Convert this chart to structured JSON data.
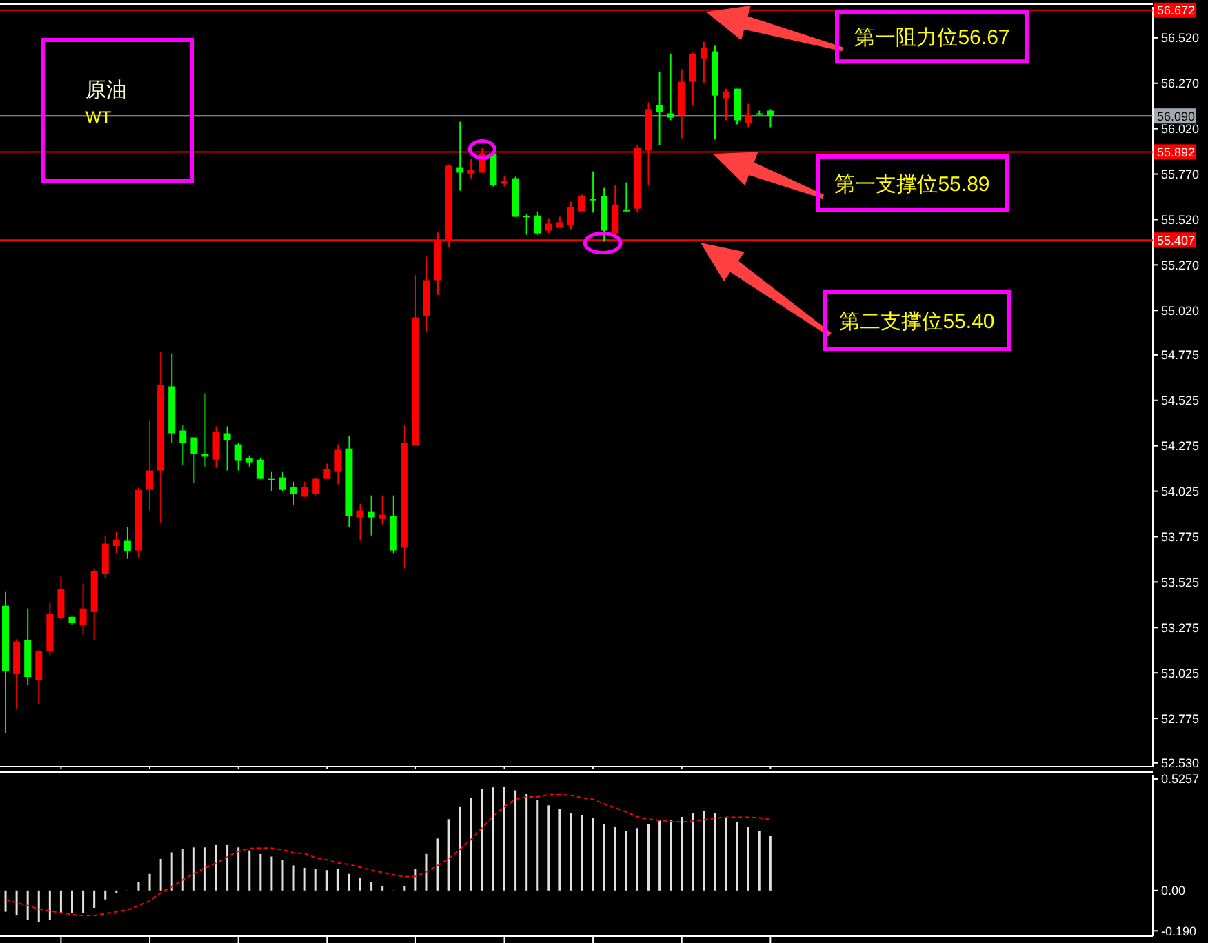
{
  "chart_data": [
    {
      "type": "candlestick",
      "categories": [
        null,
        null,
        null,
        null,
        null,
        null,
        null,
        null,
        null,
        null,
        null,
        null,
        null,
        null,
        null,
        null,
        null,
        null,
        null,
        null,
        null,
        null,
        null,
        null,
        null,
        null,
        null,
        null,
        null,
        null,
        null,
        null,
        null,
        null,
        null,
        null,
        null,
        null,
        null,
        null,
        null,
        null,
        null,
        null,
        null,
        null,
        null,
        null,
        null,
        null,
        null,
        null,
        null,
        null,
        null,
        null,
        null,
        null,
        null,
        null,
        null,
        null,
        null,
        null,
        null,
        null,
        null,
        null,
        null,
        null,
        null,
        null,
        null,
        null,
        null,
        null,
        null,
        null,
        null,
        null,
        null,
        null,
        null,
        null,
        null,
        null,
        null,
        null,
        null,
        null,
        null,
        null,
        null,
        null,
        null,
        null,
        null,
        null,
        null,
        null,
        null,
        null,
        null,
        null
      ],
      "ohlc": [
        [
          53.395,
          53.471,
          52.692,
          53.034
        ],
        [
          53.018,
          53.211,
          52.826,
          53.198
        ],
        [
          53.206,
          53.38,
          52.958,
          53.003
        ],
        [
          52.988,
          53.15,
          52.851,
          53.145
        ],
        [
          53.147,
          53.41,
          53.125,
          53.35
        ],
        [
          53.329,
          53.555,
          53.32,
          53.486
        ],
        [
          53.334,
          53.334,
          53.291,
          53.299
        ],
        [
          53.291,
          53.517,
          53.236,
          53.38
        ],
        [
          53.36,
          53.6,
          53.206,
          53.585
        ],
        [
          53.572,
          53.782,
          53.547,
          53.737
        ],
        [
          53.724,
          53.8,
          53.684,
          53.759
        ],
        [
          53.752,
          53.828,
          53.653,
          53.694
        ],
        [
          53.699,
          54.045,
          53.661,
          54.032
        ],
        [
          54.032,
          54.412,
          53.919,
          54.139
        ],
        [
          54.139,
          54.791,
          53.853,
          54.609
        ],
        [
          54.602,
          54.784,
          54.29,
          54.344
        ],
        [
          54.359,
          54.389,
          54.169,
          54.29
        ],
        [
          54.321,
          54.321,
          54.07,
          54.23
        ],
        [
          54.23,
          54.564,
          54.161,
          54.215
        ],
        [
          54.199,
          54.382,
          54.154,
          54.351
        ],
        [
          54.344,
          54.382,
          54.139,
          54.306
        ],
        [
          54.283,
          54.29,
          54.139,
          54.192
        ],
        [
          54.207,
          54.222,
          54.161,
          54.184
        ],
        [
          54.199,
          54.207,
          54.093,
          54.093
        ],
        [
          54.093,
          54.131,
          54.025,
          54.088
        ],
        [
          54.101,
          54.131,
          54.025,
          54.032
        ],
        [
          54.048,
          54.078,
          53.949,
          54.01
        ],
        [
          53.995,
          54.078,
          53.995,
          54.048
        ],
        [
          54.01,
          54.101,
          53.995,
          54.093
        ],
        [
          54.093,
          54.177,
          54.093,
          54.146
        ],
        [
          54.131,
          54.283,
          54.063,
          54.253
        ],
        [
          54.26,
          54.328,
          53.828,
          53.888
        ],
        [
          53.881,
          53.957,
          53.752,
          53.919
        ],
        [
          53.911,
          54.002,
          53.782,
          53.881
        ],
        [
          53.873,
          54.002,
          53.843,
          53.896
        ],
        [
          53.888,
          54.002,
          53.684,
          53.699
        ],
        [
          53.714,
          54.389,
          53.6,
          54.29
        ],
        [
          54.278,
          55.214,
          54.278,
          54.981
        ],
        [
          54.989,
          55.315,
          54.9,
          55.186
        ],
        [
          55.186,
          55.449,
          55.105,
          55.408
        ],
        [
          55.408,
          55.823,
          55.368,
          55.816
        ],
        [
          55.808,
          56.058,
          55.679,
          55.778
        ],
        [
          55.773,
          55.853,
          55.747,
          55.793
        ],
        [
          55.778,
          55.914,
          55.778,
          55.884
        ],
        [
          55.884,
          55.884,
          55.702,
          55.709
        ],
        [
          55.717,
          55.762,
          55.702,
          55.732
        ],
        [
          55.747,
          55.755,
          55.535,
          55.535
        ],
        [
          55.54,
          55.548,
          55.436,
          55.532
        ],
        [
          55.542,
          55.565,
          55.436,
          55.444
        ],
        [
          55.459,
          55.527,
          55.444,
          55.497
        ],
        [
          55.474,
          55.535,
          55.474,
          55.505
        ],
        [
          55.489,
          55.618,
          55.467,
          55.588
        ],
        [
          55.565,
          55.656,
          55.565,
          55.649
        ],
        [
          55.633,
          55.785,
          55.558,
          55.626
        ],
        [
          55.649,
          55.694,
          55.398,
          55.459
        ],
        [
          55.444,
          55.709,
          55.444,
          55.603
        ],
        [
          55.573,
          55.724,
          55.565,
          55.565
        ],
        [
          55.58,
          55.929,
          55.558,
          55.914
        ],
        [
          55.899,
          56.165,
          55.709,
          56.127
        ],
        [
          56.149,
          56.331,
          55.929,
          56.111
        ],
        [
          56.104,
          56.43,
          56.066,
          56.081
        ],
        [
          56.094,
          56.347,
          55.967,
          56.278
        ],
        [
          56.278,
          56.438,
          56.149,
          56.43
        ],
        [
          56.407,
          56.498,
          56.271,
          56.463
        ],
        [
          56.445,
          56.476,
          55.96,
          56.202
        ],
        [
          56.187,
          56.24,
          56.066,
          56.225
        ],
        [
          56.24,
          56.24,
          56.043,
          56.066
        ],
        [
          56.051,
          56.157,
          56.028,
          56.096
        ],
        [
          56.104,
          56.119,
          56.096,
          56.096
        ],
        [
          56.119,
          56.127,
          56.028,
          56.089
        ],
        null,
        null,
        null,
        null,
        null,
        null,
        null,
        null,
        null,
        null,
        null,
        null,
        null,
        null,
        null,
        null,
        null,
        null,
        null,
        null,
        null,
        null,
        null,
        null,
        null,
        null,
        null,
        null,
        null,
        null,
        null,
        null,
        null,
        null
      ],
      "ylim": [
        52.51,
        56.69
      ],
      "yticks": [
        {
          "value": 52.53,
          "label": "52.530"
        },
        {
          "value": 52.775,
          "label": "52.775"
        },
        {
          "value": 53.025,
          "label": "53.025"
        },
        {
          "value": 53.275,
          "label": "53.275"
        },
        {
          "value": 53.525,
          "label": "53.525"
        },
        {
          "value": 53.775,
          "label": "53.775"
        },
        {
          "value": 54.025,
          "label": "54.025"
        },
        {
          "value": 54.275,
          "label": "54.275"
        },
        {
          "value": 54.525,
          "label": "54.525"
        },
        {
          "value": 54.775,
          "label": "54.775"
        },
        {
          "value": 55.02,
          "label": "55.020"
        },
        {
          "value": 55.27,
          "label": "55.270"
        },
        {
          "value": 55.52,
          "label": "55.520"
        },
        {
          "value": 55.77,
          "label": "55.770"
        },
        {
          "value": 56.02,
          "label": "56.020"
        },
        {
          "value": 56.27,
          "label": "56.270"
        },
        {
          "value": 56.52,
          "label": "56.520"
        }
      ],
      "tick_labels": "y",
      "ref_lines": [
        {
          "axis": "y",
          "value": 56.672,
          "label": "56.672",
          "color": "#ff0000"
        },
        {
          "axis": "y",
          "value": 56.09,
          "label": "56.090",
          "color": "#a0a8b0"
        },
        {
          "axis": "y",
          "value": 55.892,
          "label": "55.892",
          "color": "#ff0000"
        },
        {
          "axis": "y",
          "value": 55.407,
          "label": "55.407",
          "color": "#ff0000"
        }
      ],
      "annotations": [
        {
          "text": "第一阻力位56.67",
          "y": 56.67
        },
        {
          "text": "第一支撑位55.89",
          "y": 55.89
        },
        "第二支撑位55.40",
        "原油",
        "WT"
      ]
    },
    {
      "type": "bar",
      "categories": [
        null,
        null,
        null,
        null,
        null,
        null,
        null,
        null,
        null,
        null,
        null,
        null,
        null,
        null,
        null,
        null,
        null,
        null,
        null,
        null,
        null,
        null,
        null,
        null,
        null,
        null,
        null,
        null,
        null,
        null,
        null,
        null,
        null,
        null,
        null,
        null,
        null,
        null,
        null,
        null,
        null,
        null,
        null,
        null,
        null,
        null,
        null,
        null,
        null,
        null,
        null,
        null,
        null,
        null,
        null,
        null,
        null,
        null,
        null,
        null,
        null,
        null,
        null,
        null,
        null,
        null,
        null,
        null,
        null,
        null,
        null,
        null,
        null,
        null,
        null,
        null,
        null,
        null,
        null,
        null,
        null,
        null,
        null,
        null,
        null,
        null,
        null,
        null,
        null,
        null,
        null,
        null,
        null,
        null,
        null,
        null,
        null,
        null,
        null,
        null,
        null,
        null,
        null,
        null
      ],
      "series": [
        {
          "type": "bar",
          "color": "#e0e0e0",
          "values": [
            -0.1,
            -0.118,
            -0.14,
            -0.149,
            -0.138,
            -0.107,
            -0.107,
            -0.105,
            -0.082,
            -0.042,
            -0.013,
            0,
            0.04,
            0.078,
            0.149,
            0.18,
            0.196,
            0.203,
            0.203,
            0.214,
            0.214,
            0.203,
            0.189,
            0.172,
            0.16,
            0.143,
            0.118,
            0.107,
            0.1,
            0.096,
            0.1,
            0.078,
            0.058,
            0.04,
            0.022,
            0,
            0.022,
            0.1,
            0.172,
            0.245,
            0.336,
            0.396,
            0.437,
            0.479,
            0.486,
            0.49,
            0.472,
            0.454,
            0.425,
            0.401,
            0.383,
            0.365,
            0.354,
            0.341,
            0.312,
            0.298,
            0.281,
            0.294,
            0.312,
            0.33,
            0.33,
            0.347,
            0.365,
            0.376,
            0.365,
            0.347,
            0.323,
            0.298,
            0.281,
            0.256,
            null,
            null,
            null,
            null,
            null,
            null,
            null,
            null,
            null,
            null,
            null,
            null,
            null,
            null,
            null,
            null,
            null,
            null,
            null,
            null,
            null,
            null,
            null,
            null,
            null,
            null,
            null,
            null,
            null,
            null,
            null,
            null,
            null,
            null
          ]
        },
        {
          "type": "line",
          "color": "#ff0000",
          "line_style": "dashed",
          "values": [
            -0.042,
            -0.058,
            -0.071,
            -0.087,
            -0.096,
            -0.105,
            -0.114,
            -0.118,
            -0.118,
            -0.109,
            -0.1,
            -0.091,
            -0.071,
            -0.049,
            -0.011,
            0.018,
            0.051,
            0.08,
            0.107,
            0.129,
            0.158,
            0.185,
            0.198,
            0.2,
            0.2,
            0.192,
            0.178,
            0.174,
            0.154,
            0.145,
            0.129,
            0.123,
            0.109,
            0.096,
            0.085,
            0.074,
            0.065,
            0.067,
            0.089,
            0.118,
            0.151,
            0.194,
            0.241,
            0.296,
            0.35,
            0.396,
            0.43,
            0.441,
            0.441,
            0.452,
            0.452,
            0.448,
            0.437,
            0.43,
            0.408,
            0.39,
            0.37,
            0.347,
            0.336,
            0.33,
            0.325,
            0.323,
            0.327,
            0.334,
            0.341,
            0.345,
            0.345,
            0.345,
            0.343,
            0.334,
            null,
            null,
            null,
            null,
            null,
            null,
            null,
            null,
            null,
            null,
            null,
            null,
            null,
            null,
            null,
            null,
            null,
            null,
            null,
            null,
            null,
            null,
            null,
            null,
            null,
            null,
            null,
            null,
            null,
            null,
            null,
            null,
            null,
            null
          ]
        }
      ],
      "ylim": [
        -0.215,
        0.545
      ],
      "yticks": [
        0.5257,
        {
          "value": 0,
          "label": "0.00"
        },
        {
          "value": -0.19,
          "label": "-0.190"
        }
      ],
      "tick_labels": "y"
    }
  ]
}
